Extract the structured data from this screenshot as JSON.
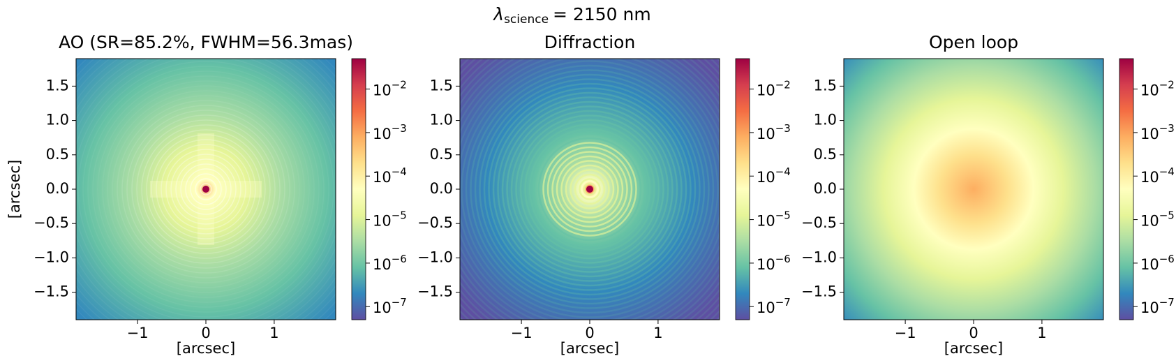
{
  "suptitle": {
    "symbol": "λ",
    "subscript": "science",
    "text": "= 2150 nm"
  },
  "chart_data": [
    {
      "type": "heatmap",
      "title": "AO (SR=85.2%, FWHM=56.3mas)",
      "xlabel": "[arcsec]",
      "ylabel": "[arcsec]",
      "xlim": [
        -1.9,
        1.9
      ],
      "ylim": [
        -1.9,
        1.9
      ],
      "xticks": [
        {
          "value": -1,
          "label": "−1"
        },
        0,
        1
      ],
      "yticks": [
        {
          "value": -1.5,
          "label": "−1.5"
        },
        {
          "value": -1,
          "label": "−1.0"
        },
        {
          "value": -0.5,
          "label": "−0.5"
        },
        {
          "value": 0,
          "label": "0.0"
        },
        0.5,
        {
          "value": 1,
          "label": "1.0"
        },
        1.5
      ],
      "colorbar": {
        "scale": "log",
        "cmap": "Spectral_r",
        "lim": [
          5e-08,
          0.05
        ],
        "ticks": [
          {
            "value": 1e-07,
            "label": {
              "base": "10",
              "exponent": "−7"
            }
          },
          {
            "value": 1e-06,
            "label": {
              "base": "10",
              "exponent": "−6"
            }
          },
          {
            "value": 1e-05,
            "label": {
              "base": "10",
              "exponent": "−5"
            }
          },
          {
            "value": 0.0001,
            "label": {
              "base": "10",
              "exponent": "−4"
            }
          },
          {
            "value": 0.001,
            "label": {
              "base": "10",
              "exponent": "−3"
            }
          },
          {
            "value": 0.01,
            "label": {
              "base": "10",
              "exponent": "−2"
            }
          }
        ]
      }
    },
    {
      "type": "heatmap",
      "title": "Diffraction",
      "xlabel": "[arcsec]",
      "xlim": [
        -1.9,
        1.9
      ],
      "ylim": [
        -1.9,
        1.9
      ],
      "xticks": [
        {
          "value": -1,
          "label": "−1"
        },
        0,
        1
      ],
      "yticks": [
        {
          "value": -1.5,
          "label": "−1.5"
        },
        {
          "value": -1,
          "label": "−1.0"
        },
        {
          "value": -0.5,
          "label": "−0.5"
        },
        {
          "value": 0,
          "label": "0.0"
        },
        0.5,
        {
          "value": 1,
          "label": "1.0"
        },
        1.5
      ],
      "colorbar": {
        "scale": "log",
        "cmap": "Spectral_r",
        "lim": [
          5e-08,
          0.05
        ],
        "ticks": [
          {
            "value": 1e-07,
            "label": {
              "base": "10",
              "exponent": "−7"
            }
          },
          {
            "value": 1e-06,
            "label": {
              "base": "10",
              "exponent": "−6"
            }
          },
          {
            "value": 1e-05,
            "label": {
              "base": "10",
              "exponent": "−5"
            }
          },
          {
            "value": 0.0001,
            "label": {
              "base": "10",
              "exponent": "−4"
            }
          },
          {
            "value": 0.001,
            "label": {
              "base": "10",
              "exponent": "−3"
            }
          },
          {
            "value": 0.01,
            "label": {
              "base": "10",
              "exponent": "−2"
            }
          }
        ]
      }
    },
    {
      "type": "heatmap",
      "title": "Open loop",
      "xlabel": "[arcsec]",
      "xlim": [
        -1.9,
        1.9
      ],
      "ylim": [
        -1.9,
        1.9
      ],
      "xticks": [
        {
          "value": -1,
          "label": "−1"
        },
        0,
        1
      ],
      "yticks": [
        {
          "value": -1.5,
          "label": "−1.5"
        },
        {
          "value": -1,
          "label": "−1.0"
        },
        {
          "value": -0.5,
          "label": "−0.5"
        },
        {
          "value": 0,
          "label": "0.0"
        },
        0.5,
        {
          "value": 1,
          "label": "1.0"
        },
        1.5
      ],
      "colorbar": {
        "scale": "log",
        "cmap": "Spectral_r",
        "lim": [
          5e-08,
          0.05
        ],
        "ticks": [
          {
            "value": 1e-07,
            "label": {
              "base": "10",
              "exponent": "−7"
            }
          },
          {
            "value": 1e-06,
            "label": {
              "base": "10",
              "exponent": "−6"
            }
          },
          {
            "value": 1e-05,
            "label": {
              "base": "10",
              "exponent": "−5"
            }
          },
          {
            "value": 0.0001,
            "label": {
              "base": "10",
              "exponent": "−4"
            }
          },
          {
            "value": 0.001,
            "label": {
              "base": "10",
              "exponent": "−3"
            }
          },
          {
            "value": 0.01,
            "label": {
              "base": "10",
              "exponent": "−2"
            }
          }
        ]
      }
    }
  ]
}
